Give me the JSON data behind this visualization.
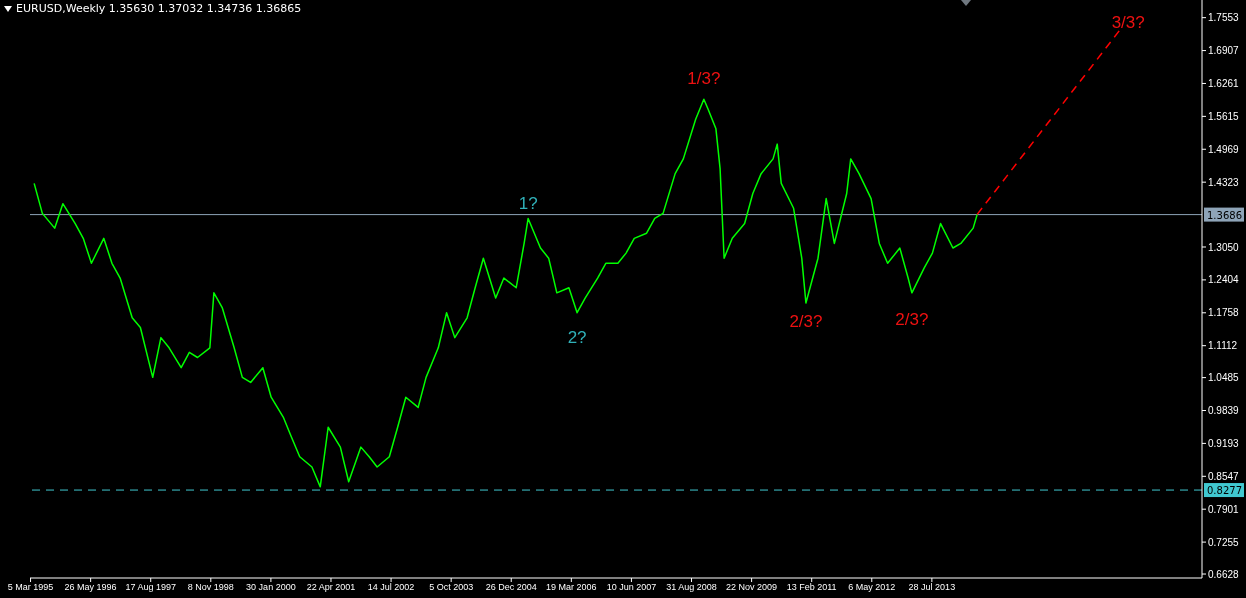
{
  "chart_data": {
    "type": "line",
    "title": "EURUSD,Weekly  1.35630 1.37032 1.34736 1.36865",
    "xlim": [
      "1995-03-01",
      "2019-02-01"
    ],
    "xticks": [
      {
        "value": "1995-03-05",
        "label": "5 Mar 1995"
      },
      {
        "value": "1996-05-26",
        "label": "26 May 1996"
      },
      {
        "value": "1997-08-17",
        "label": "17 Aug 1997"
      },
      {
        "value": "1998-11-08",
        "label": "8 Nov 1998"
      },
      {
        "value": "2000-01-30",
        "label": "30 Jan 2000"
      },
      {
        "value": "2001-04-22",
        "label": "22 Apr 2001"
      },
      {
        "value": "2002-07-14",
        "label": "14 Jul 2002"
      },
      {
        "value": "2003-10-05",
        "label": "5 Oct 2003"
      },
      {
        "value": "2004-12-26",
        "label": "26 Dec 2004"
      },
      {
        "value": "2006-03-19",
        "label": "19 Mar 2006"
      },
      {
        "value": "2007-06-10",
        "label": "10 Jun 2007"
      },
      {
        "value": "2008-08-31",
        "label": "31 Aug 2008"
      },
      {
        "value": "2009-11-22",
        "label": "22 Nov 2009"
      },
      {
        "value": "2011-02-13",
        "label": "13 Feb 2011"
      },
      {
        "value": "2012-05-06",
        "label": "6 May 2012"
      },
      {
        "value": "2013-07-28",
        "label": "28 Jul 2013"
      }
    ],
    "ylim": [
      0.655,
      1.79
    ],
    "yticks": [
      {
        "value": 1.7553,
        "label": "1.7553"
      },
      {
        "value": 1.6907,
        "label": "1.6907"
      },
      {
        "value": 1.6261,
        "label": "1.6261"
      },
      {
        "value": 1.5615,
        "label": "1.5615"
      },
      {
        "value": 1.4969,
        "label": "1.4969"
      },
      {
        "value": 1.4323,
        "label": "1.4323"
      },
      {
        "value": 1.305,
        "label": "1.3050"
      },
      {
        "value": 1.2404,
        "label": "1.2404"
      },
      {
        "value": 1.1758,
        "label": "1.1758"
      },
      {
        "value": 1.1112,
        "label": "1.1112"
      },
      {
        "value": 1.0485,
        "label": "1.0485"
      },
      {
        "value": 0.9839,
        "label": "0.9839"
      },
      {
        "value": 0.9193,
        "label": "0.9193"
      },
      {
        "value": 0.8547,
        "label": "0.8547"
      },
      {
        "value": 0.7901,
        "label": "0.7901"
      },
      {
        "value": 0.7255,
        "label": "0.7255"
      },
      {
        "value": 0.6628,
        "label": "0.6628"
      }
    ],
    "marker": "none",
    "grid": false,
    "legend": false,
    "series": [
      {
        "color": "#00ff00",
        "line_style": "solid",
        "x": [
          "1995-04",
          "1995-06",
          "1995-09",
          "1995-11",
          "1996-02",
          "1996-04",
          "1996-06",
          "1996-09",
          "1996-11",
          "1997-01",
          "1997-04",
          "1997-06",
          "1997-09",
          "1997-11",
          "1998-01",
          "1998-04",
          "1998-06",
          "1998-08",
          "1998-11",
          "1998-12",
          "1999-02",
          "1999-05",
          "1999-07",
          "1999-09",
          "1999-12",
          "2000-02",
          "2000-05",
          "2000-07",
          "2000-09",
          "2000-12",
          "2001-02",
          "2001-04",
          "2001-07",
          "2001-09",
          "2001-12",
          "2002-02",
          "2002-04",
          "2002-07",
          "2002-09",
          "2002-11",
          "2003-02",
          "2003-04",
          "2003-07",
          "2003-09",
          "2003-11",
          "2004-02",
          "2004-04",
          "2004-06",
          "2004-09",
          "2004-11",
          "2005-02",
          "2005-04",
          "2005-05",
          "2005-08",
          "2005-10",
          "2005-12",
          "2006-03",
          "2006-05",
          "2006-07",
          "2006-10",
          "2006-12",
          "2007-03",
          "2007-05",
          "2007-07",
          "2007-10",
          "2007-12",
          "2008-02",
          "2008-05",
          "2008-07",
          "2008-10",
          "2008-12",
          "2009-01",
          "2009-03",
          "2009-04",
          "2009-05",
          "2009-07",
          "2009-10",
          "2009-12",
          "2010-02",
          "2010-05",
          "2010-06",
          "2010-07",
          "2010-10",
          "2010-12",
          "2011-01",
          "2011-04",
          "2011-06",
          "2011-08",
          "2011-11",
          "2011-12",
          "2012-02",
          "2012-05",
          "2012-07",
          "2012-09",
          "2012-12",
          "2013-02",
          "2013-03",
          "2013-06",
          "2013-08",
          "2013-10",
          "2014-01",
          "2014-03",
          "2014-06",
          "2014-07"
        ],
        "values": [
          1.43,
          1.371,
          1.342,
          1.39,
          1.351,
          1.322,
          1.273,
          1.322,
          1.273,
          1.244,
          1.166,
          1.147,
          1.049,
          1.127,
          1.107,
          1.068,
          1.098,
          1.088,
          1.107,
          1.215,
          1.186,
          1.107,
          1.049,
          1.039,
          1.068,
          1.01,
          0.971,
          0.932,
          0.893,
          0.873,
          0.834,
          0.951,
          0.912,
          0.844,
          0.912,
          0.893,
          0.873,
          0.893,
          0.951,
          1.01,
          0.99,
          1.049,
          1.107,
          1.176,
          1.127,
          1.166,
          1.225,
          1.283,
          1.205,
          1.244,
          1.225,
          1.312,
          1.361,
          1.303,
          1.283,
          1.215,
          1.225,
          1.176,
          1.205,
          1.244,
          1.273,
          1.273,
          1.293,
          1.322,
          1.332,
          1.361,
          1.371,
          1.449,
          1.478,
          1.556,
          1.595,
          1.576,
          1.537,
          1.459,
          1.283,
          1.322,
          1.351,
          1.41,
          1.449,
          1.478,
          1.507,
          1.43,
          1.381,
          1.283,
          1.195,
          1.283,
          1.4,
          1.312,
          1.41,
          1.478,
          1.449,
          1.4,
          1.312,
          1.273,
          1.303,
          1.244,
          1.215,
          1.264,
          1.293,
          1.351,
          1.303,
          1.312,
          1.342,
          1.369
        ]
      },
      {
        "color": "#ff0000",
        "line_style": "dashed",
        "x": [
          "2014-07",
          "2017-06"
        ],
        "values": [
          1.369,
          1.732
        ]
      }
    ],
    "ref_lines": [
      {
        "axis": "y",
        "value": 1.3686,
        "label": "1.3686",
        "color": "#8ea4b8",
        "line_style": "solid"
      },
      {
        "axis": "y",
        "value": 0.8277,
        "label": "0.8277",
        "color": "#40c8d0",
        "line_style": "dashed"
      }
    ],
    "annotations": [
      {
        "text": "1?",
        "x": "2005-05",
        "y": 1.361
      },
      {
        "text": "2?",
        "x": "2006-05",
        "y": 1.176
      },
      {
        "text": "1/3?",
        "x": "2008-12",
        "y": 1.595
      },
      {
        "text": "2/3?",
        "x": "2011-01",
        "y": 1.195
      },
      {
        "text": "2/3?",
        "x": "2013-03",
        "y": 1.215
      },
      {
        "text": "3/3?",
        "x": "2017-06",
        "y": 1.732
      }
    ]
  }
}
